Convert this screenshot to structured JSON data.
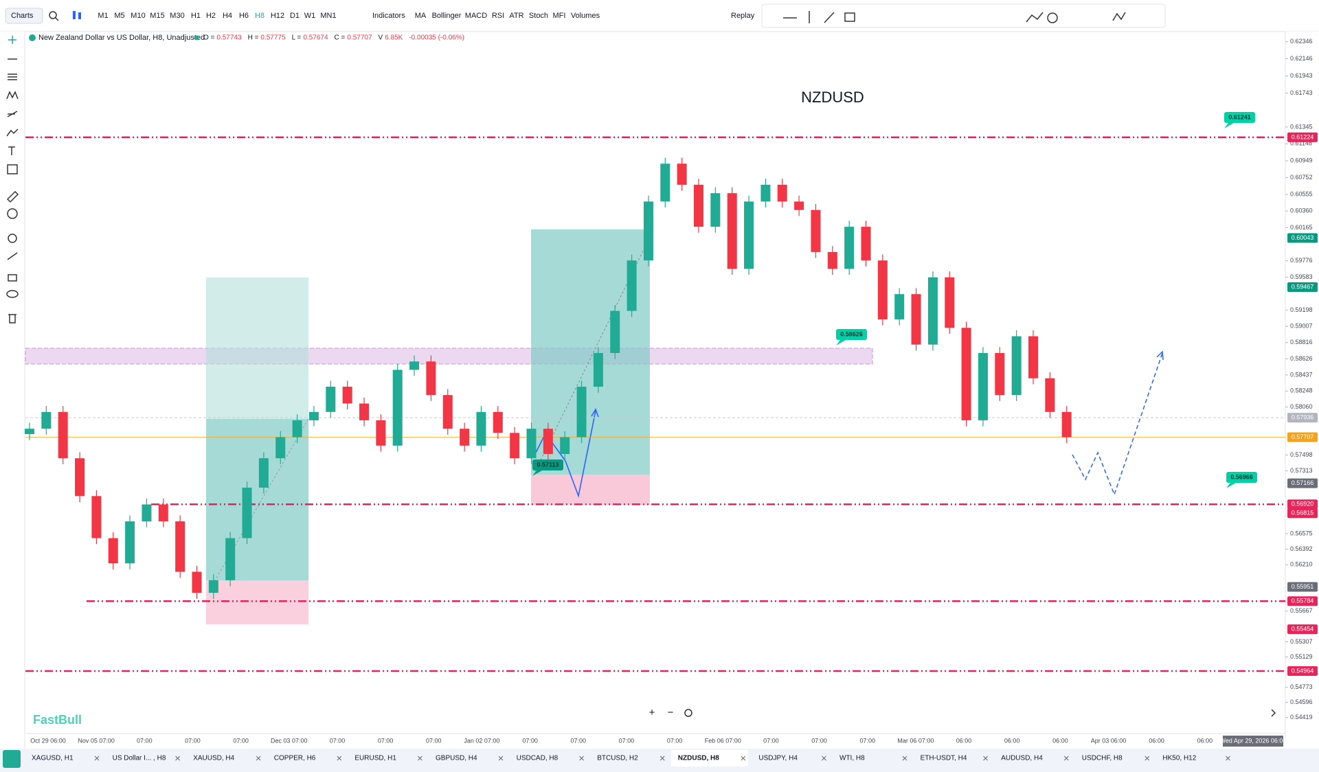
{
  "toolbar": {
    "menu": "Charts",
    "timeframes": [
      "M1",
      "M5",
      "M10",
      "M15",
      "M30",
      "H1",
      "H2",
      "H4",
      "H6",
      "H8",
      "H12",
      "D1",
      "W1",
      "MN1"
    ],
    "indicators_button": "Indicators",
    "indicators": [
      "MA",
      "Bollinger",
      "MACD",
      "RSI",
      "ATR",
      "Stoch",
      "MFI",
      "Volumes"
    ],
    "replay": "Replay"
  },
  "legend": {
    "symbol": "New Zealand Dollar vs US Dollar, H8, Unadjusted",
    "items": [
      {
        "label": "O =",
        "value": "0.57743"
      },
      {
        "label": "H =",
        "value": "0.57775"
      },
      {
        "label": "L =",
        "value": "0.57674"
      },
      {
        "label": "C =",
        "value": "0.57707"
      },
      {
        "label": "V",
        "value": "6.85K"
      }
    ],
    "change": "-0.00035 (-0.06%)"
  },
  "chart_data": {
    "type": "candlestick",
    "title": "NZDUSD",
    "up_color": "#22ab94",
    "down_color": "#f23645",
    "open": [
      0.57743,
      0.57806,
      0.58003,
      0.5746,
      0.57016,
      0.56523,
      0.56227,
      0.5672,
      0.56918,
      0.5672,
      0.56128,
      0.55881,
      0.56029,
      0.56523,
      0.57115,
      0.5746,
      0.57707,
      0.57905,
      0.58003,
      0.58299,
      0.58102,
      0.57905,
      0.57608,
      0.58497,
      0.58595,
      0.58201,
      0.57806,
      0.57608,
      0.58003,
      0.57757,
      0.5746,
      0.57806,
      0.5751,
      0.57707,
      0.58299,
      0.58694,
      0.59188,
      0.5978,
      0.60471,
      0.60915,
      0.60668,
      0.60175,
      0.60569,
      0.59681,
      0.60471,
      0.60668,
      0.60471,
      0.60372,
      0.59879,
      0.59681,
      0.60175,
      0.5978,
      0.59089,
      0.59385,
      0.58793,
      0.59582,
      0.5899,
      0.57905,
      0.58694,
      0.58201,
      0.58891,
      0.58398,
      0.58003
    ],
    "high": [
      0.57876,
      0.58073,
      0.58073,
      0.5753,
      0.57086,
      0.56593,
      0.5679,
      0.56988,
      0.56988,
      0.5679,
      0.56198,
      0.56099,
      0.56593,
      0.57185,
      0.5753,
      0.57777,
      0.57975,
      0.58073,
      0.58369,
      0.58369,
      0.58172,
      0.57975,
      0.58567,
      0.58665,
      0.58665,
      0.58271,
      0.57876,
      0.58073,
      0.58073,
      0.57827,
      0.57876,
      0.57876,
      0.57777,
      0.58369,
      0.58764,
      0.59258,
      0.5985,
      0.60541,
      0.60985,
      0.60985,
      0.60738,
      0.60639,
      0.60639,
      0.60541,
      0.60738,
      0.60738,
      0.60541,
      0.60442,
      0.59949,
      0.60245,
      0.60245,
      0.5985,
      0.59455,
      0.59455,
      0.59652,
      0.59652,
      0.5906,
      0.58764,
      0.58764,
      0.58961,
      0.58961,
      0.58468,
      0.58073
    ],
    "low": [
      0.57673,
      0.57736,
      0.5739,
      0.56946,
      0.56453,
      0.56157,
      0.56157,
      0.5665,
      0.5665,
      0.56058,
      0.55811,
      0.55811,
      0.55959,
      0.56453,
      0.57045,
      0.5739,
      0.57637,
      0.57835,
      0.57933,
      0.58032,
      0.57835,
      0.57538,
      0.57538,
      0.58427,
      0.58131,
      0.57736,
      0.57538,
      0.57538,
      0.57687,
      0.5739,
      0.5739,
      0.5744,
      0.5744,
      0.57637,
      0.58229,
      0.58624,
      0.59118,
      0.5971,
      0.60401,
      0.60598,
      0.60105,
      0.60105,
      0.59611,
      0.59611,
      0.60401,
      0.60401,
      0.60302,
      0.59809,
      0.59611,
      0.59611,
      0.5971,
      0.59019,
      0.59019,
      0.58723,
      0.58723,
      0.5892,
      0.57835,
      0.57835,
      0.58131,
      0.58131,
      0.58328,
      0.57933,
      0.57637
    ],
    "close": [
      0.57806,
      0.58003,
      0.5746,
      0.57016,
      0.56523,
      0.56227,
      0.5672,
      0.56918,
      0.5672,
      0.56128,
      0.55881,
      0.56029,
      0.56523,
      0.57115,
      0.5746,
      0.57707,
      0.57905,
      0.58003,
      0.58299,
      0.58102,
      0.57905,
      0.57608,
      0.58497,
      0.58595,
      0.58201,
      0.57806,
      0.57608,
      0.58003,
      0.57757,
      0.5746,
      0.57806,
      0.5751,
      0.57707,
      0.58299,
      0.58694,
      0.59188,
      0.5978,
      0.60471,
      0.60915,
      0.60668,
      0.60175,
      0.60569,
      0.59681,
      0.60471,
      0.60668,
      0.60471,
      0.60372,
      0.59879,
      0.59681,
      0.60175,
      0.5978,
      0.59089,
      0.59385,
      0.58793,
      0.59582,
      0.5899,
      0.57905,
      0.58694,
      0.58201,
      0.58891,
      0.58398,
      0.58003,
      0.57707
    ],
    "ylim": [
      0.54231,
      0.62464
    ],
    "yticks": [
      0.62346,
      0.62146,
      0.61943,
      0.61743,
      0.61345,
      0.61148,
      0.60949,
      0.60752,
      0.60555,
      {
        "value": 0.6036,
        "label": "0.60360"
      },
      0.60165,
      0.59776,
      0.59583,
      0.59198,
      0.59007,
      0.58816,
      0.58626,
      0.58437,
      0.58248,
      {
        "value": 0.5806,
        "label": "0.58060"
      },
      0.57498,
      0.57313,
      0.56575,
      0.56392,
      {
        "value": 0.5621,
        "label": "0.56210"
      },
      0.55667,
      0.55307,
      0.55129,
      0.54773,
      0.54596,
      0.54419
    ],
    "x_labels": [
      "Oct 29 06:00",
      "Nov 05 07:00",
      "07:00",
      "07:00",
      "07:00",
      "Dec 03 07:00",
      "07:00",
      "07:00",
      "07:00",
      "Jan 02 07:00",
      "07:00",
      "07:00",
      "07:00",
      "07:00",
      "Feb 06 07:00",
      "07:00",
      "07:00",
      "07:00",
      "Mar 06 07:00",
      "06:00",
      "06:00",
      "06:00",
      "Apr 03 06:00",
      "06:00",
      "06:00"
    ],
    "crosshair_time": "Wed Apr 29, 2026 06:00",
    "price_tags": [
      {
        "value": 0.61224,
        "color": "#e8245a"
      },
      {
        "value": 0.60043,
        "color": "#089981"
      },
      {
        "value": 0.59467,
        "color": "#089981"
      },
      {
        "value": 0.57936,
        "color": "#b2b5be"
      },
      {
        "value": 0.57707,
        "color": "#f7a21b"
      },
      {
        "value": 0.57166,
        "color": "#6a6d78"
      },
      {
        "value": 0.5692,
        "label": "0.56920",
        "color": "#e8245a"
      },
      {
        "value": 0.56815,
        "color": "#e8245a"
      },
      {
        "value": 0.55951,
        "color": "#6a6d78"
      },
      {
        "value": 0.55784,
        "color": "#e8245a"
      },
      {
        "value": 0.55454,
        "color": "#e8245a"
      },
      {
        "value": 0.54964,
        "color": "#e8245a"
      }
    ],
    "annotations": [
      "0.61241",
      "0.56966",
      "0.58626",
      "0.57113"
    ]
  },
  "watermark": "FastBull",
  "tabs": [
    "XAGUSD, H1",
    "US Dollar I... , H8",
    "XAUUSD, H4",
    "COPPER, H6",
    "EURUSD, H1",
    "GBPUSD, H4",
    "USDCAD, H8",
    "BTCUSD, H2",
    "NZDUSD, H8",
    "USDJPY, H4",
    "WTI, H8",
    "ETH-USDT, H4",
    "AUDUSD, H4",
    "USDCHF, H8",
    "HK50, H12"
  ]
}
